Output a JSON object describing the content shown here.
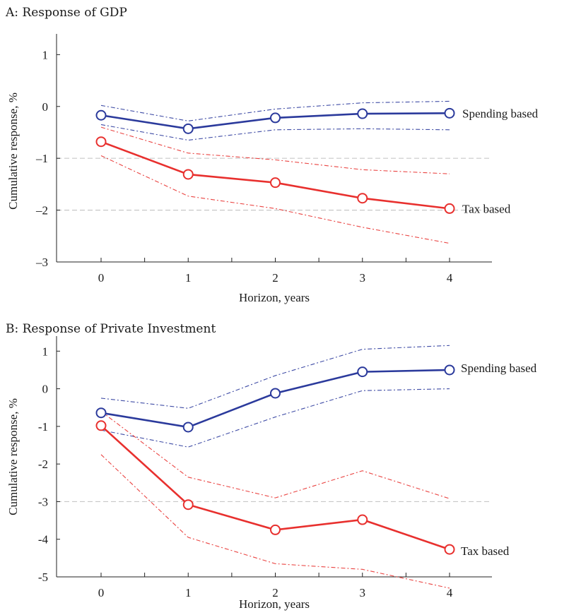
{
  "chart_data": [
    {
      "type": "line",
      "title": "A: Response of GDP",
      "xlabel": "Horizon, years",
      "ylabel": "Cumulative response, %",
      "x": [
        0,
        1,
        2,
        3,
        4
      ],
      "xticklabels": [
        "0",
        "1",
        "2",
        "3",
        "4"
      ],
      "ylim": [
        -3,
        1.4
      ],
      "yticks": [
        1,
        0,
        -1,
        -2,
        -3
      ],
      "yticklabels": [
        "1",
        "0",
        "–1",
        "–2",
        "–3"
      ],
      "reference_lines": [
        -1,
        -2
      ],
      "series": [
        {
          "name": "Spending based",
          "color": "#2b3a9c",
          "values": [
            -0.17,
            -0.43,
            -0.22,
            -0.14,
            -0.13
          ],
          "upper": [
            0.02,
            -0.28,
            -0.05,
            0.07,
            0.1
          ],
          "lower": [
            -0.35,
            -0.65,
            -0.45,
            -0.43,
            -0.45
          ]
        },
        {
          "name": "Tax based",
          "color": "#e8302e",
          "values": [
            -0.68,
            -1.31,
            -1.47,
            -1.77,
            -1.97
          ],
          "upper": [
            -0.4,
            -0.9,
            -1.03,
            -1.22,
            -1.3
          ],
          "lower": [
            -0.95,
            -1.73,
            -1.97,
            -2.33,
            -2.64
          ]
        }
      ]
    },
    {
      "type": "line",
      "title": "B: Response of Private Investment",
      "xlabel": "Horizon, years",
      "ylabel": "Cumulative response, %",
      "x": [
        0,
        1,
        2,
        3,
        4
      ],
      "xticklabels": [
        "0",
        "1",
        "2",
        "3",
        "4"
      ],
      "ylim": [
        -5,
        1.4
      ],
      "yticks": [
        1,
        0,
        -1,
        -2,
        -3,
        -4,
        -5
      ],
      "yticklabels": [
        "1",
        "0",
        "-1",
        "-2",
        "-3",
        "-4",
        "-5"
      ],
      "reference_lines": [
        -3
      ],
      "series": [
        {
          "name": "Spending based",
          "color": "#2b3a9c",
          "values": [
            -0.64,
            -1.02,
            -0.12,
            0.45,
            0.5
          ],
          "upper": [
            -0.25,
            -0.52,
            0.35,
            1.05,
            1.15
          ],
          "lower": [
            -1.1,
            -1.55,
            -0.75,
            -0.05,
            0.0
          ]
        },
        {
          "name": "Tax based",
          "color": "#e8302e",
          "values": [
            -0.98,
            -3.08,
            -3.75,
            -3.48,
            -4.27
          ],
          "upper": [
            -0.6,
            -2.35,
            -2.9,
            -2.18,
            -2.92
          ],
          "lower": [
            -1.75,
            -3.95,
            -4.65,
            -4.8,
            -5.3
          ]
        }
      ]
    }
  ]
}
